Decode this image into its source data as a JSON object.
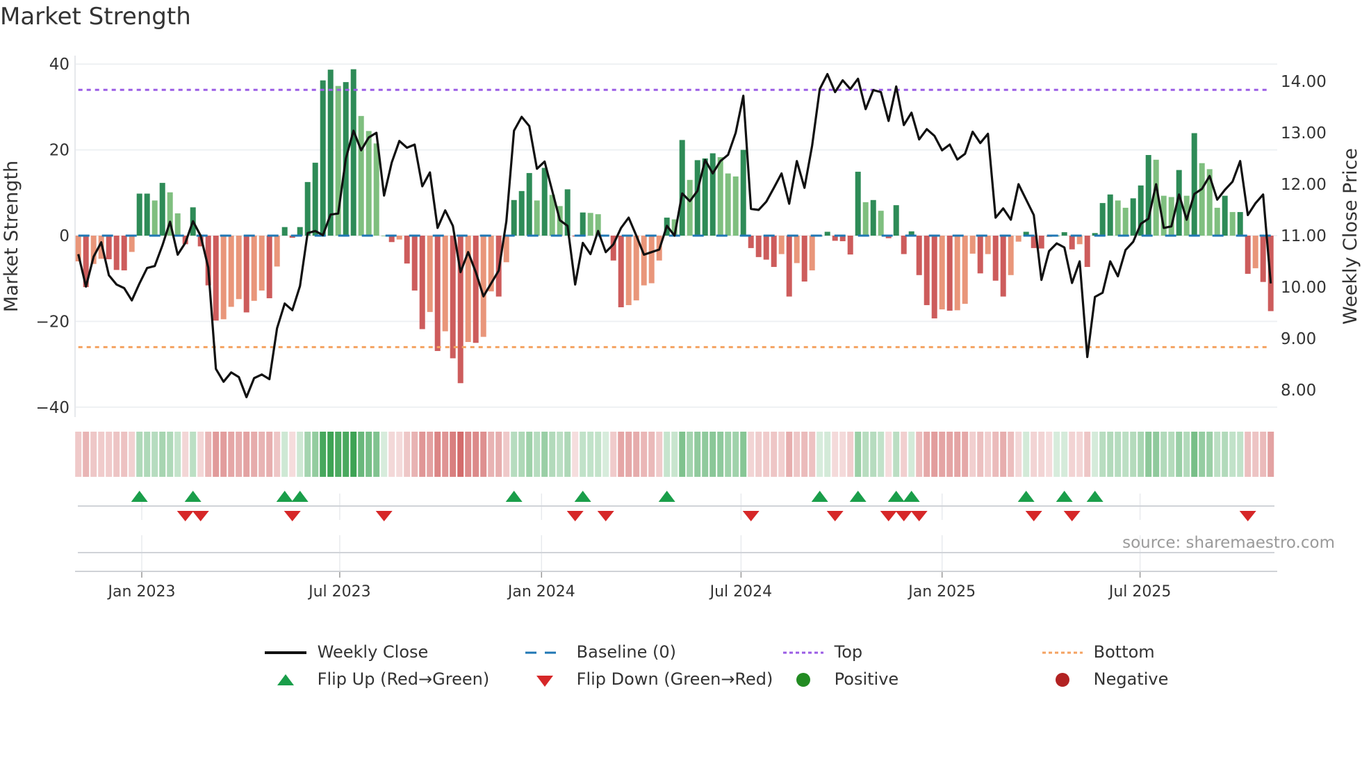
{
  "title": "Market Strength",
  "source": "source: sharemaestro.com",
  "colors": {
    "dark_green": "#2e8b57",
    "light_green": "#7fbf7f",
    "dark_red": "#cd5c5c",
    "light_red": "#e9967a",
    "top": "#9b5de5",
    "bottom": "#f4a261",
    "baseline": "#1f77b4",
    "flip_up": "#1a9e4a",
    "flip_down": "#d62728",
    "positive": "#228b22",
    "negative": "#b22222",
    "line": "#111111"
  },
  "legend": [
    {
      "label": "Weekly Close",
      "icon": "line-solid-icon"
    },
    {
      "label": "Baseline (0)",
      "icon": "line-dashed-icon"
    },
    {
      "label": "Top",
      "icon": "line-dotted-purple-icon"
    },
    {
      "label": "Bottom",
      "icon": "line-dotted-orange-icon"
    },
    {
      "label": "Flip Up (Red→Green)",
      "icon": "triangle-up-icon"
    },
    {
      "label": "Flip Down (Green→Red)",
      "icon": "triangle-down-icon"
    },
    {
      "label": "Positive",
      "icon": "dot-green-icon"
    },
    {
      "label": "Negative",
      "icon": "dot-red-icon"
    }
  ],
  "chart_data": {
    "type": "bar+line",
    "title": "Market Strength",
    "ylabel": "Market Strength",
    "y2label": "Weekly Close Price",
    "ylim": [
      -42,
      42
    ],
    "y2lim": [
      7.8,
      14.35
    ],
    "yticks": [
      40,
      20,
      0,
      -20,
      -40
    ],
    "ytick_labels": [
      "40",
      "20",
      "0",
      "−20",
      "−40"
    ],
    "y2ticks": [
      14,
      13,
      12,
      11,
      10,
      9,
      8
    ],
    "y2tick_labels": [
      "14.00",
      "13.00",
      "12.00",
      "11.00",
      "10.00",
      "9.00",
      "8.00"
    ],
    "xticks": [
      {
        "label": "Jan 2023",
        "week": 8.3
      },
      {
        "label": "Jul 2023",
        "week": 34.2
      },
      {
        "label": "Jan 2024",
        "week": 60.6
      },
      {
        "label": "Jul 2024",
        "week": 86.7
      },
      {
        "label": "Jan 2025",
        "week": 113.0
      },
      {
        "label": "Jul 2025",
        "week": 138.9
      }
    ],
    "top": 34,
    "bottom": -26,
    "baseline": 0,
    "strength": [
      -6,
      -12,
      -6.6,
      -5.4,
      -5.5,
      -8,
      -8.1,
      -3.8,
      9.8,
      9.8,
      8.2,
      12.3,
      10.1,
      5.2,
      -2,
      6.6,
      -2.5,
      -11.6,
      -19.8,
      -19.5,
      -16.6,
      -14.8,
      -17.9,
      -15.2,
      -12.8,
      -14.6,
      -7.2,
      2,
      -0.5,
      2,
      12.5,
      17,
      36.2,
      38.7,
      34.9,
      35.8,
      38.8,
      27.9,
      24.4,
      21.5,
      0,
      -1.5,
      -0.9,
      -6.5,
      -12.8,
      -21.8,
      -17.8,
      -26.9,
      -22.3,
      -28.6,
      -34.4,
      -24.8,
      -25,
      -23.6,
      -13,
      -14.2,
      -6.2,
      8.3,
      10.4,
      14.6,
      8.2,
      15.8,
      9.5,
      6.9,
      10.8,
      -0.2,
      5.4,
      5.3,
      5,
      0,
      -5.8,
      -16.7,
      -16.2,
      -15.1,
      -11.6,
      -11.1,
      -5.8,
      4.2,
      3.8,
      22.3,
      13,
      17.6,
      18,
      19.2,
      18.3,
      14.5,
      13.8,
      20,
      -2.9,
      -5,
      -5.6,
      -7.3,
      -4.3,
      -14.2,
      -6.4,
      -10.7,
      -8.1,
      0,
      0.9,
      -1.2,
      -1.3,
      -4.4,
      14.9,
      7.8,
      8.3,
      5.8,
      -0.6,
      7.1,
      -4.3,
      1,
      -9.2,
      -16.2,
      -19.3,
      -17.2,
      -17.5,
      -17.4,
      -15.9,
      -4.2,
      -8.8,
      -4.3,
      -10.5,
      -14.2,
      -9.2,
      -1.4,
      0.9,
      -2.9,
      -3,
      -0.3,
      0,
      0.8,
      -3.2,
      -2,
      -7.3,
      0.6,
      7.6,
      9.6,
      8.2,
      6.5,
      8.7,
      11.7,
      18.8,
      17.7,
      9.3,
      9,
      15.3,
      9.3,
      23.9,
      16.9,
      15.5,
      6.5,
      9.3,
      5.5,
      5.5,
      -8.9,
      -7.6,
      -10.8,
      -17.6
    ],
    "close": [
      10.64,
      10.01,
      10.59,
      10.87,
      10.23,
      10.05,
      9.98,
      9.74,
      10.07,
      10.37,
      10.41,
      10.81,
      11.27,
      10.63,
      10.86,
      11.28,
      11.0,
      10.38,
      8.41,
      8.16,
      8.34,
      8.25,
      7.86,
      8.23,
      8.3,
      8.21,
      9.2,
      9.68,
      9.55,
      10.02,
      11.05,
      11.09,
      11.01,
      11.41,
      11.43,
      12.5,
      13.04,
      12.66,
      12.91,
      13.0,
      11.78,
      12.42,
      12.84,
      12.71,
      12.77,
      11.96,
      12.23,
      11.15,
      11.49,
      11.19,
      10.29,
      10.68,
      10.29,
      9.82,
      10.07,
      10.32,
      11.28,
      13.04,
      13.31,
      13.13,
      12.3,
      12.44,
      11.87,
      11.3,
      11.19,
      10.05,
      10.86,
      10.64,
      11.09,
      10.68,
      10.83,
      11.15,
      11.35,
      11.0,
      10.63,
      10.68,
      10.73,
      11.19,
      11.0,
      11.82,
      11.67,
      11.87,
      12.47,
      12.21,
      12.45,
      12.57,
      13.0,
      13.72,
      11.52,
      11.5,
      11.66,
      11.93,
      12.21,
      11.62,
      12.45,
      11.93,
      12.75,
      13.85,
      14.14,
      13.79,
      14.02,
      13.85,
      14.05,
      13.46,
      13.83,
      13.79,
      13.23,
      13.9,
      13.15,
      13.39,
      12.87,
      13.07,
      12.94,
      12.66,
      12.77,
      12.48,
      12.59,
      13.02,
      12.8,
      12.98,
      11.35,
      11.53,
      11.31,
      12.0,
      11.7,
      11.4,
      10.14,
      10.7,
      10.85,
      10.77,
      10.08,
      10.5,
      8.64,
      9.81,
      9.89,
      10.5,
      10.21,
      10.72,
      10.88,
      11.23,
      11.33,
      12.0,
      11.15,
      11.18,
      11.8,
      11.31,
      11.81,
      11.91,
      12.16,
      11.7,
      11.89,
      12.05,
      12.45,
      11.4,
      11.63,
      11.8,
      10.07
    ],
    "flip_up_weeks": [
      8,
      15,
      27,
      29,
      57,
      66,
      77,
      97,
      102,
      107,
      109,
      124,
      129,
      133
    ],
    "flip_down_weeks": [
      14,
      16,
      28,
      40,
      65,
      69,
      88,
      99,
      106,
      108,
      110,
      125,
      130,
      153
    ]
  }
}
